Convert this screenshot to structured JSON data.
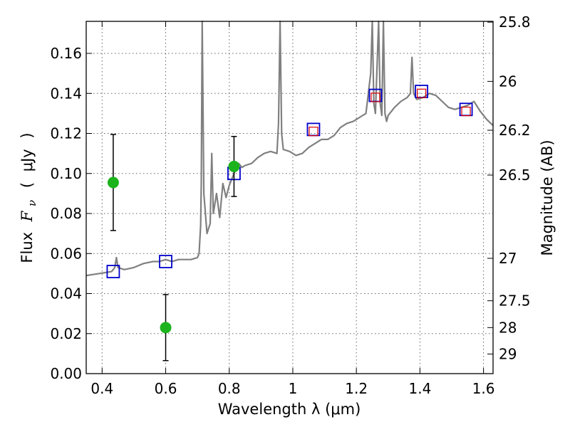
{
  "chart_data": {
    "type": "scatter",
    "xlabel": "Wavelength  λ (μm)",
    "ylabel_parts": [
      "Flux",
      "F",
      "ν",
      "(",
      "μJy",
      ")"
    ],
    "y2label": "Magnitude (AB)",
    "xlim": [
      0.35,
      1.63
    ],
    "ylim": [
      0.0,
      0.176
    ],
    "grid": true,
    "x_ticks": [
      0.4,
      0.6,
      0.8,
      1.0,
      1.2,
      1.4,
      1.6
    ],
    "x_tick_labels": [
      "0.4",
      "0.6",
      "0.8",
      "1",
      "1.2",
      "1.4",
      "1.6"
    ],
    "y_ticks": [
      0.0,
      0.02,
      0.04,
      0.06,
      0.08,
      0.1,
      0.12,
      0.14,
      0.16
    ],
    "y_tick_labels": [
      "0.00",
      "0.02",
      "0.04",
      "0.06",
      "0.08",
      "0.10",
      "0.12",
      "0.14",
      "0.16"
    ],
    "y2_ticks": [
      {
        "label": "25.8",
        "flux": 0.1756
      },
      {
        "label": "26",
        "flux": 0.146
      },
      {
        "label": "26.2",
        "flux": 0.1216
      },
      {
        "label": "26.5",
        "flux": 0.0992
      },
      {
        "label": "27",
        "flux": 0.0576
      },
      {
        "label": "27.5",
        "flux": 0.0364
      },
      {
        "label": "28",
        "flux": 0.023
      },
      {
        "label": "29",
        "flux": 0.0098
      }
    ],
    "series": [
      {
        "kind": "spectrum",
        "color": "#808080",
        "x": [
          0.35,
          0.37,
          0.39,
          0.41,
          0.43,
          0.44,
          0.445,
          0.45,
          0.47,
          0.5,
          0.53,
          0.56,
          0.58,
          0.6,
          0.62,
          0.64,
          0.66,
          0.68,
          0.7,
          0.705,
          0.71,
          0.712,
          0.715,
          0.72,
          0.73,
          0.74,
          0.745,
          0.75,
          0.76,
          0.77,
          0.78,
          0.79,
          0.8,
          0.81,
          0.82,
          0.83,
          0.84,
          0.85,
          0.87,
          0.89,
          0.91,
          0.93,
          0.95,
          0.955,
          0.96,
          0.965,
          0.97,
          0.99,
          1.01,
          1.03,
          1.05,
          1.07,
          1.09,
          1.11,
          1.13,
          1.15,
          1.17,
          1.19,
          1.21,
          1.23,
          1.245,
          1.25,
          1.255,
          1.26,
          1.27,
          1.275,
          1.28,
          1.285,
          1.29,
          1.295,
          1.3,
          1.32,
          1.34,
          1.36,
          1.37,
          1.375,
          1.38,
          1.39,
          1.41,
          1.43,
          1.45,
          1.47,
          1.49,
          1.51,
          1.53,
          1.55,
          1.57,
          1.59,
          1.61,
          1.63
        ],
        "y": [
          0.049,
          0.0495,
          0.05,
          0.0505,
          0.051,
          0.053,
          0.058,
          0.053,
          0.052,
          0.053,
          0.055,
          0.056,
          0.056,
          0.057,
          0.056,
          0.057,
          0.057,
          0.057,
          0.058,
          0.06,
          0.074,
          0.095,
          0.18,
          0.09,
          0.07,
          0.075,
          0.11,
          0.08,
          0.09,
          0.078,
          0.095,
          0.088,
          0.094,
          0.098,
          0.102,
          0.105,
          0.103,
          0.104,
          0.105,
          0.108,
          0.11,
          0.111,
          0.11,
          0.125,
          0.18,
          0.12,
          0.112,
          0.111,
          0.109,
          0.11,
          0.113,
          0.115,
          0.117,
          0.117,
          0.119,
          0.123,
          0.125,
          0.126,
          0.128,
          0.13,
          0.15,
          0.18,
          0.135,
          0.13,
          0.18,
          0.135,
          0.129,
          0.18,
          0.13,
          0.126,
          0.129,
          0.133,
          0.136,
          0.138,
          0.14,
          0.158,
          0.14,
          0.137,
          0.138,
          0.14,
          0.139,
          0.136,
          0.133,
          0.132,
          0.133,
          0.134,
          0.136,
          0.131,
          0.127,
          0.124
        ]
      },
      {
        "kind": "model-photometry",
        "color": "#0000cc",
        "marker": "open-square",
        "points": [
          [
            0.435,
            0.051
          ],
          [
            0.6,
            0.056
          ],
          [
            0.815,
            0.1
          ],
          [
            1.065,
            0.122
          ],
          [
            1.26,
            0.139
          ],
          [
            1.405,
            0.141
          ],
          [
            1.545,
            0.132
          ]
        ]
      },
      {
        "kind": "model-photometry-alt",
        "color": "#e00000",
        "marker": "open-square-small",
        "points": [
          [
            1.065,
            0.121
          ],
          [
            1.26,
            0.138
          ],
          [
            1.405,
            0.14
          ],
          [
            1.545,
            0.131
          ]
        ]
      },
      {
        "kind": "observed",
        "color": "#1db31d",
        "marker": "filled-circle",
        "points": [
          [
            0.435,
            0.0955
          ],
          [
            0.6,
            0.023
          ],
          [
            0.815,
            0.1035
          ]
        ],
        "errors": [
          [
            0.0715,
            0.1195
          ],
          [
            0.0065,
            0.0395
          ],
          [
            0.0885,
            0.1185
          ]
        ]
      }
    ]
  }
}
